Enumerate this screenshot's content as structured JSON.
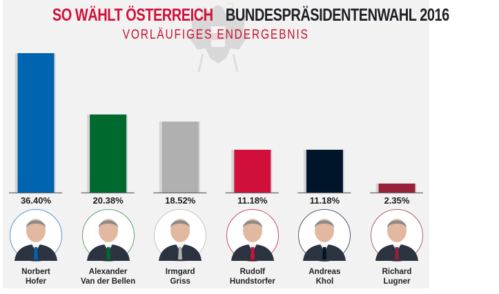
{
  "header": {
    "title_red": "SO WÄHLT ÖSTERREICH",
    "title_dark": "BUNDESPRÄSIDENTENWAHL 2016",
    "subtitle": "VORLÄUFIGES ENDERGEBNIS",
    "colors": {
      "red": "#d0103a",
      "dark": "#1e1e24"
    },
    "background_icon": "austrian-eagle-crest-icon"
  },
  "candidates": [
    {
      "first": "Norbert",
      "last": "Hofer",
      "color": "#0065b0",
      "ring": "#5b94c7",
      "photo_icon": "portrait-icon"
    },
    {
      "first": "Alexander",
      "last": "Van der Bellen",
      "color": "#006a2e",
      "ring": "#5fa06e",
      "photo_icon": "portrait-icon"
    },
    {
      "first": "Irmgard",
      "last": "Griss",
      "color": "#b0b0b0",
      "ring": "#c4c4c4",
      "photo_icon": "portrait-icon"
    },
    {
      "first": "Rudolf",
      "last": "Hundstorfer",
      "color": "#d0103a",
      "ring": "#c94a68",
      "photo_icon": "portrait-icon"
    },
    {
      "first": "Andreas",
      "last": "Khol",
      "color": "#001529",
      "ring": "#4a5868",
      "photo_icon": "portrait-icon"
    },
    {
      "first": "Richard",
      "last": "Lugner",
      "color": "#952238",
      "ring": "#a75f6e",
      "photo_icon": "portrait-icon"
    }
  ],
  "chart_data": {
    "type": "bar",
    "title": "BUNDESPRÄSIDENTENWAHL 2016",
    "subtitle": "VORLÄUFIGES ENDERGEBNIS",
    "categories": [
      "Norbert Hofer",
      "Alexander Van der Bellen",
      "Irmgard Griss",
      "Rudolf Hundstorfer",
      "Andreas Khol",
      "Richard Lugner"
    ],
    "values": [
      36.4,
      20.38,
      18.52,
      11.18,
      11.18,
      2.35
    ],
    "labels": [
      "36.40%",
      "20.38%",
      "18.52%",
      "11.18%",
      "11.18%",
      "2.35%"
    ],
    "colors": [
      "#0065b0",
      "#006a2e",
      "#b0b0b0",
      "#d0103a",
      "#001529",
      "#952238"
    ],
    "xlabel": "",
    "ylabel": "",
    "unit": "%",
    "ylim": [
      0,
      36.4
    ],
    "grid": false,
    "legend": "none"
  }
}
